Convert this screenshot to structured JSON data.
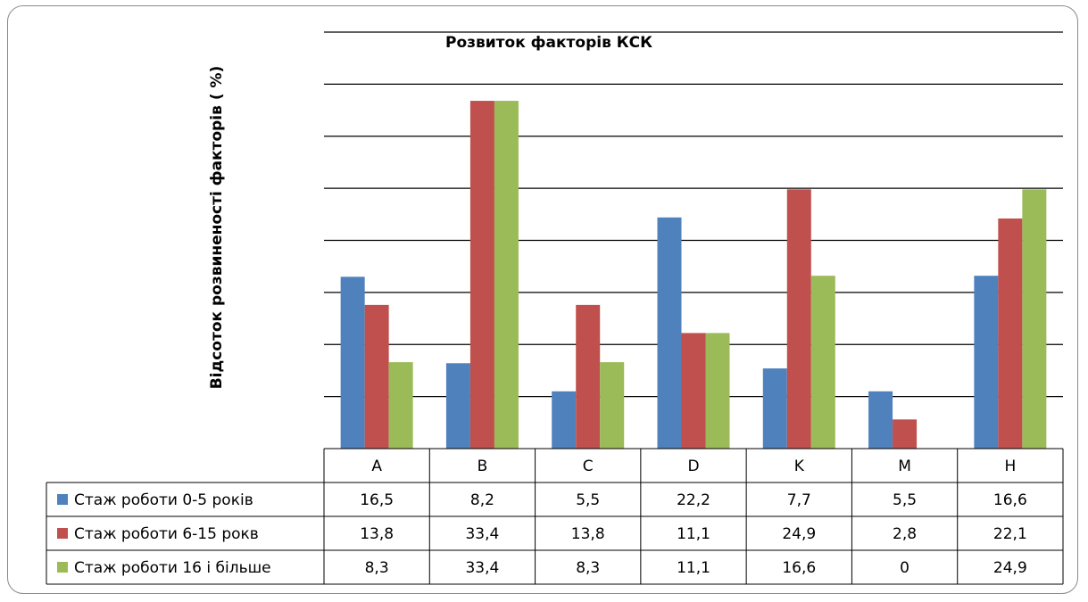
{
  "chart_data": {
    "type": "bar",
    "title": "Розвиток факторів КСК",
    "xlabel": "",
    "ylabel": "Відсоток розвиненості факторів ( %)",
    "ylim": [
      0,
      40
    ],
    "grid": true,
    "legend_placement": "table-left",
    "categories": [
      "A",
      "B",
      "C",
      "D",
      "K",
      "M",
      "H"
    ],
    "series": [
      {
        "name": "Стаж роботи 0-5 років",
        "color": "#4f81bd",
        "values": [
          16.5,
          8.2,
          5.5,
          22.2,
          7.7,
          5.5,
          16.6
        ],
        "labels": [
          "16,5",
          "8,2",
          "5,5",
          "22,2",
          "7,7",
          "5,5",
          "16,6"
        ]
      },
      {
        "name": "Стаж роботи 6-15 рокв",
        "color": "#c0504d",
        "values": [
          13.8,
          33.4,
          13.8,
          11.1,
          24.9,
          2.8,
          22.1
        ],
        "labels": [
          "13,8",
          "33,4",
          "13,8",
          "11,1",
          "24,9",
          "2,8",
          "22,1"
        ]
      },
      {
        "name": "Стаж роботи 16 і більше",
        "color": "#9bbb59",
        "values": [
          8.3,
          33.4,
          8.3,
          11.1,
          16.6,
          0,
          24.9
        ],
        "labels": [
          "8,3",
          "33,4",
          "8,3",
          "11,1",
          "16,6",
          "0",
          "24,9"
        ]
      }
    ]
  }
}
